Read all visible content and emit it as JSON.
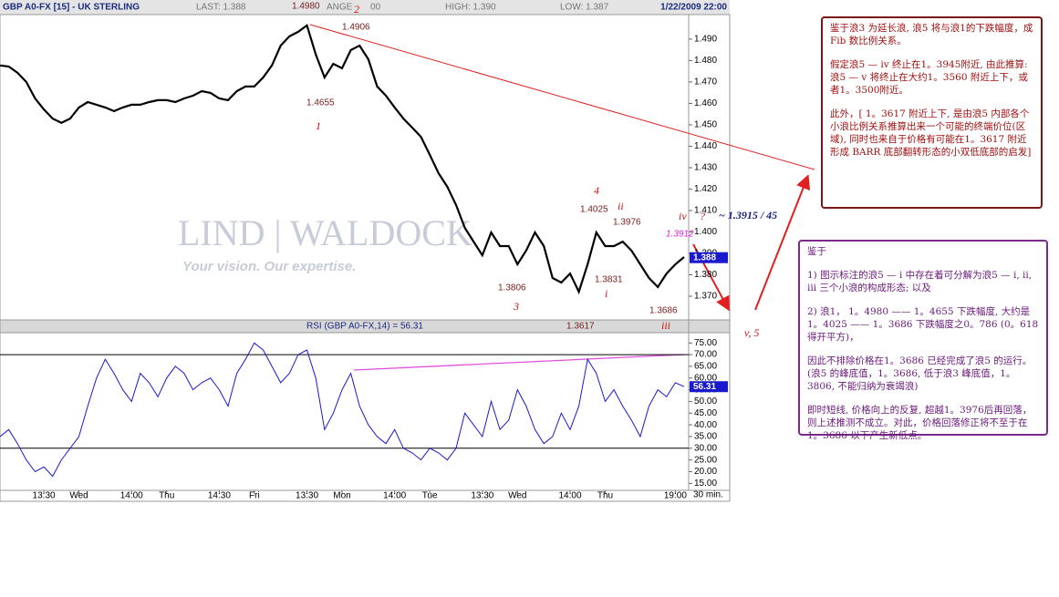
{
  "header": {
    "last": "LAST: 1.388",
    "change": "ANGE",
    "change_tail": "00",
    "high": "HIGH: 1.390",
    "low": "LOW: 1.387",
    "datetime": "1/22/2009 22:00"
  },
  "watermark": {
    "brand": "LIND | WALDOCK",
    "slogan": "Your vision. Our expertise."
  },
  "x_unit": "30 min.",
  "chart_data": [
    {
      "type": "line",
      "title": "GBP A0-FX [15] - UK STERLING",
      "color": "#000000",
      "categories": [
        null,
        null,
        null,
        null,
        null,
        "13:30",
        null,
        null,
        null,
        "Wed",
        null,
        null,
        null,
        null,
        null,
        "14:00",
        null,
        null,
        null,
        "Thu",
        null,
        null,
        null,
        null,
        null,
        "14:30",
        null,
        null,
        null,
        "Fri",
        null,
        null,
        null,
        null,
        null,
        "13:30",
        null,
        null,
        null,
        "Mon",
        null,
        null,
        null,
        null,
        null,
        "14:00",
        null,
        null,
        null,
        "Tue",
        null,
        null,
        null,
        null,
        null,
        "13:30",
        null,
        null,
        null,
        "Wed",
        null,
        null,
        null,
        null,
        null,
        "14:00",
        null,
        null,
        null,
        "Thu",
        null,
        null,
        null,
        null,
        null,
        null,
        null,
        "19:00",
        null
      ],
      "values": [
        1.4777,
        1.4772,
        1.4743,
        1.47,
        1.4623,
        1.4572,
        1.4529,
        1.4509,
        1.4529,
        1.4581,
        1.4606,
        1.4594,
        1.4581,
        1.4564,
        1.4581,
        1.4594,
        1.4594,
        1.4606,
        1.4615,
        1.4615,
        1.4606,
        1.4623,
        1.4636,
        1.4657,
        1.4649,
        1.4623,
        1.4615,
        1.4657,
        1.4679,
        1.4679,
        1.4721,
        1.4777,
        1.487,
        1.4913,
        1.4934,
        1.4964,
        1.4828,
        1.4721,
        1.4785,
        1.4764,
        1.4849,
        1.487,
        1.4806,
        1.4679,
        1.4636,
        1.4581,
        1.4529,
        1.4487,
        1.4444,
        1.436,
        1.4274,
        1.4211,
        1.4126,
        1.4019,
        1.3955,
        1.3891,
        1.3998,
        1.3934,
        1.3934,
        1.3849,
        1.3913,
        1.3998,
        1.3934,
        1.3785,
        1.3764,
        1.3806,
        1.3721,
        1.3849,
        1.3998,
        1.3934,
        1.3934,
        1.3955,
        1.3913,
        1.3849,
        1.3785,
        1.3743,
        1.3806,
        1.3849,
        1.3883
      ],
      "ylim": [
        1.3615,
        1.5006
      ],
      "yticks": [
        {
          "value": 1.37,
          "label": "1.370"
        },
        {
          "value": 1.38,
          "label": "1.380"
        },
        {
          "value": 1.39,
          "label": "1.390"
        },
        {
          "value": 1.4,
          "label": "1.400"
        },
        {
          "value": 1.41,
          "label": "1.410"
        },
        {
          "value": 1.42,
          "label": "1.420"
        },
        {
          "value": 1.43,
          "label": "1.430"
        },
        {
          "value": 1.44,
          "label": "1.440"
        },
        {
          "value": 1.45,
          "label": "1.450"
        },
        {
          "value": 1.46,
          "label": "1.460"
        },
        {
          "value": 1.47,
          "label": "1.470"
        },
        {
          "value": 1.48,
          "label": "1.480"
        },
        {
          "value": 1.49,
          "label": "1.490"
        }
      ],
      "last_label": {
        "value": 1.388,
        "label": "1.388"
      },
      "grid": false,
      "annotations": [
        "1.4980",
        "2",
        "1.4906",
        "1.4655",
        "1",
        "1.3806",
        "3",
        "1.3617",
        "4",
        "1.4025",
        "ii",
        "1.3976",
        "1.3831",
        "i",
        "1.3686",
        "iii",
        "iv",
        "?",
        "1.3912",
        "~ 1.3915 / 45",
        "v, 5"
      ]
    },
    {
      "type": "line",
      "title": "RSI (GBP A0-FX,14) = 56.31",
      "color": "#1a1acc",
      "values": [
        35,
        38,
        32,
        25,
        20,
        22,
        18,
        25,
        30,
        35,
        48,
        60,
        68,
        62,
        55,
        50,
        62,
        58,
        52,
        60,
        65,
        62,
        55,
        58,
        60,
        55,
        48,
        62,
        68,
        75,
        72,
        65,
        58,
        62,
        70,
        72,
        60,
        38,
        45,
        55,
        62,
        48,
        40,
        35,
        32,
        38,
        30,
        28,
        25,
        30,
        28,
        25,
        30,
        45,
        40,
        35,
        50,
        38,
        42,
        55,
        48,
        38,
        32,
        35,
        45,
        38,
        48,
        68,
        62,
        50,
        55,
        48,
        42,
        35,
        48,
        55,
        52,
        58,
        56.31
      ],
      "ylim": [
        12,
        79
      ],
      "yticks": [
        {
          "value": 15,
          "label": "15.00"
        },
        {
          "value": 20,
          "label": "20.00"
        },
        {
          "value": 25,
          "label": "25.00"
        },
        {
          "value": 30,
          "label": "30.00"
        },
        {
          "value": 35,
          "label": "35.00"
        },
        {
          "value": 40,
          "label": "40.00"
        },
        {
          "value": 45,
          "label": "45.00"
        },
        {
          "value": 50,
          "label": "50.00"
        },
        {
          "value": 55,
          "label": "55.00"
        },
        {
          "value": 60,
          "label": "60.00"
        },
        {
          "value": 65,
          "label": "65.00"
        },
        {
          "value": 70,
          "label": "70.00"
        },
        {
          "value": 75,
          "label": "75.00"
        }
      ],
      "reference_lines": [
        30,
        70
      ],
      "grid": false
    }
  ],
  "notes": [
    [
      "鉴于浪3 为延长浪, 浪5 将与浪1的下跌幅度，成Fib 数比例关系。",
      "假定浪5 — iv 终止在1。3945附近, 由此推算:浪5 — v 将终止在大约1。3560 附近上下，或者1。3500附近。",
      "此外，[ 1。3617 附近上下, 是由浪5 内部各个小浪比例关系推算出来一个可能的终端价位(区域), 同时也来自于价格有可能在1。3617 附近形成 BARR 底部翻转形态的小双低底部的启发]"
    ],
    [
      "鉴于",
      "1) 图示标注的浪5 — i 中存在着可分解为浪5 — i, ii, iii 三个小浪的构成形态; 以及",
      "2) 浪1， 1。4980 —— 1。4655 下跌幅度, 大约是 1。4025 —— 1。3686 下跌幅度之0。786 (0。618得开平方)，",
      "因此不排除价格在1。3686 已经完成了浪5 的运行。(浪5 的峰底值，1。3686, 低于浪3 峰底值，1。3806, 不能归纳为衰竭浪)",
      "即时短线, 价格向上的反复, 超越1。3976后再回落，则上述推测不成立。对此，价格回落修正将不至于在1。3686 以下产生新低点。"
    ]
  ]
}
